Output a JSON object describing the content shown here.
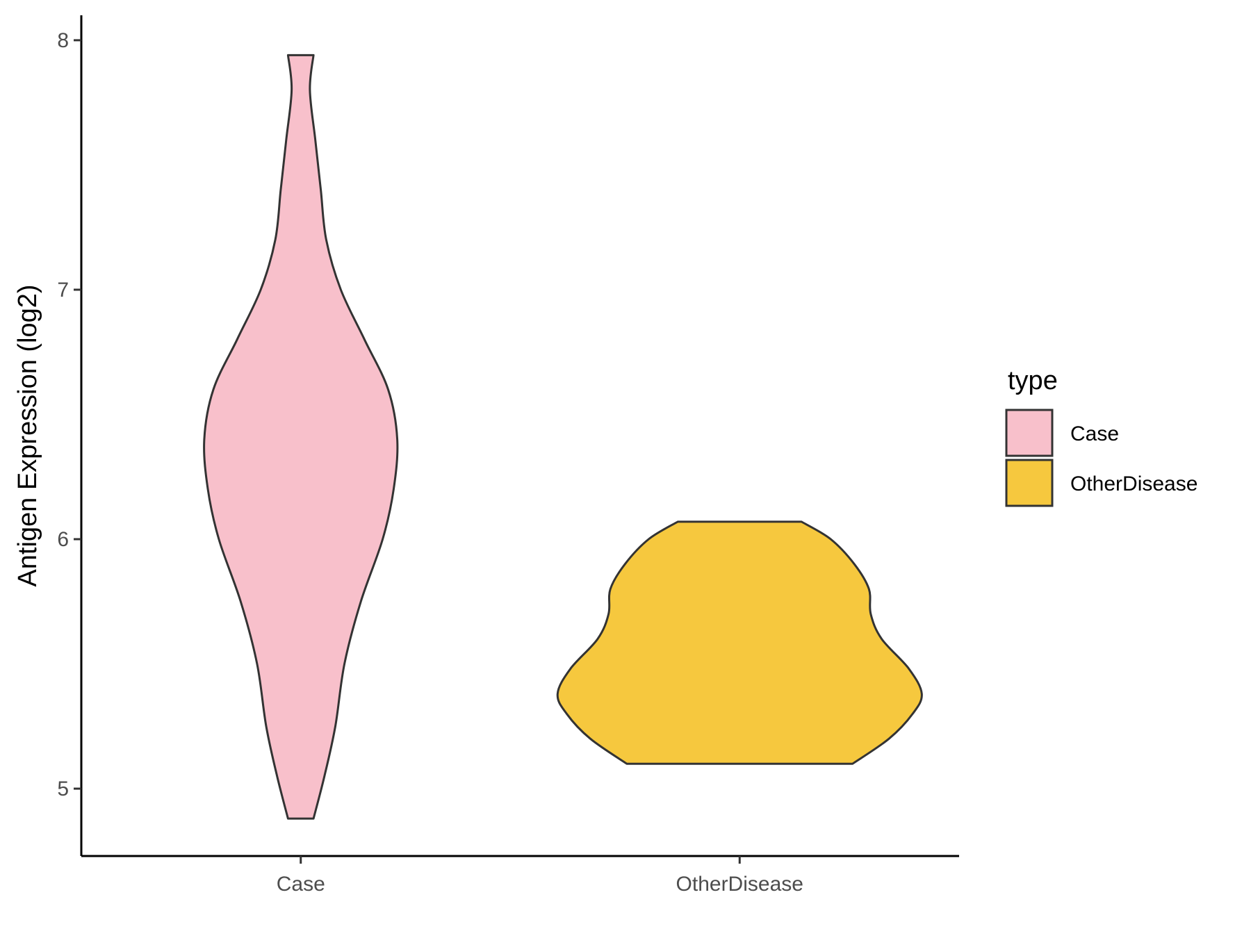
{
  "chart_data": {
    "type": "violin",
    "ylabel": "Antigen Expression (log2)",
    "xlabel": "",
    "ylim": [
      4.73,
      8.1
    ],
    "yticks": [
      5,
      6,
      7,
      8
    ],
    "categories": [
      "Case",
      "OtherDisease"
    ],
    "grid": false,
    "legend": {
      "title": "type",
      "position": "right",
      "entries": [
        {
          "label": "Case",
          "color": "#F8C0CB"
        },
        {
          "label": "OtherDisease",
          "color": "#F6C83E"
        }
      ]
    },
    "series": [
      {
        "category": "Case",
        "color": "#F8C0CB",
        "min": 4.88,
        "max": 7.94,
        "density_profile": [
          [
            4.88,
            0.07
          ],
          [
            5.05,
            0.13
          ],
          [
            5.25,
            0.19
          ],
          [
            5.5,
            0.24
          ],
          [
            5.75,
            0.33
          ],
          [
            6.0,
            0.45
          ],
          [
            6.2,
            0.51
          ],
          [
            6.4,
            0.53
          ],
          [
            6.6,
            0.48
          ],
          [
            6.8,
            0.35
          ],
          [
            7.0,
            0.22
          ],
          [
            7.2,
            0.14
          ],
          [
            7.4,
            0.11
          ],
          [
            7.6,
            0.08
          ],
          [
            7.8,
            0.05
          ],
          [
            7.94,
            0.07
          ]
        ]
      },
      {
        "category": "OtherDisease",
        "color": "#F6C83E",
        "min": 5.1,
        "max": 6.07,
        "density_profile": [
          [
            5.1,
            0.62
          ],
          [
            5.2,
            0.82
          ],
          [
            5.3,
            0.95
          ],
          [
            5.38,
            1.0
          ],
          [
            5.48,
            0.93
          ],
          [
            5.6,
            0.78
          ],
          [
            5.7,
            0.72
          ],
          [
            5.8,
            0.71
          ],
          [
            5.9,
            0.63
          ],
          [
            6.0,
            0.5
          ],
          [
            6.07,
            0.34
          ]
        ]
      }
    ]
  }
}
